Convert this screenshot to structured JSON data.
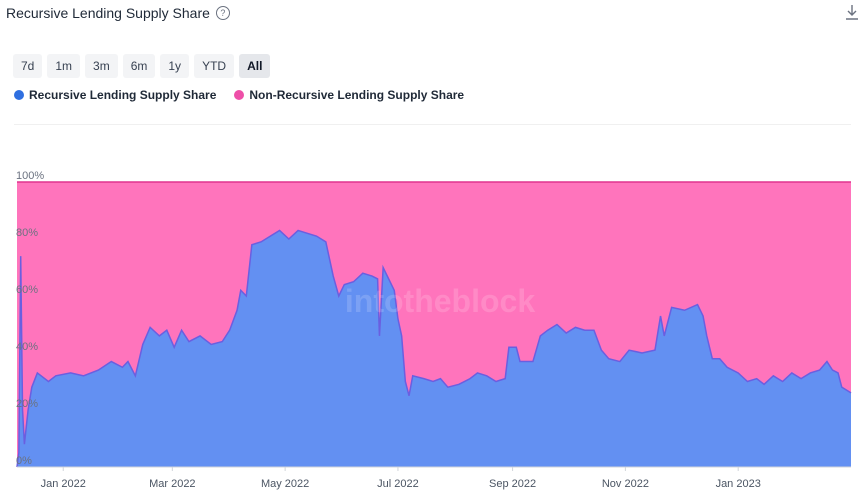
{
  "header": {
    "title": "Recursive Lending Supply Share",
    "help_icon": "question-circle-icon",
    "download_icon": "download-icon"
  },
  "ranges": [
    {
      "label": "7d",
      "active": false
    },
    {
      "label": "1m",
      "active": false
    },
    {
      "label": "3m",
      "active": false
    },
    {
      "label": "6m",
      "active": false
    },
    {
      "label": "1y",
      "active": false
    },
    {
      "label": "YTD",
      "active": false
    },
    {
      "label": "All",
      "active": true
    }
  ],
  "legend": [
    {
      "label": "Recursive Lending Supply Share",
      "color": "#2f6fe0"
    },
    {
      "label": "Non-Recursive Lending Supply Share",
      "color": "#ee4fa8"
    }
  ],
  "watermark": "intotheblock",
  "chart_data": {
    "type": "area",
    "stacked": true,
    "percent": true,
    "x_ticks": [
      "Jan 2022",
      "Mar 2022",
      "May 2022",
      "Jul 2022",
      "Sep 2022",
      "Nov 2022",
      "Jan 2023"
    ],
    "y_ticks": [
      "0%",
      "20%",
      "40%",
      "60%",
      "80%",
      "100%"
    ],
    "ylim": [
      0,
      100
    ],
    "grid": false,
    "x_range": [
      "2021-12-07",
      "2023-03-03"
    ],
    "series": [
      {
        "name": "Recursive Lending Supply Share",
        "color": "#6390f2",
        "line_color": "#6a5fe0",
        "points": [
          [
            "2021-12-07",
            0
          ],
          [
            "2021-12-08",
            5
          ],
          [
            "2021-12-09",
            74
          ],
          [
            "2021-12-10",
            20
          ],
          [
            "2021-12-11",
            8
          ],
          [
            "2021-12-13",
            20
          ],
          [
            "2021-12-15",
            28
          ],
          [
            "2021-12-18",
            33
          ],
          [
            "2021-12-24",
            30
          ],
          [
            "2021-12-28",
            32
          ],
          [
            "2022-01-05",
            33
          ],
          [
            "2022-01-12",
            32
          ],
          [
            "2022-01-20",
            34
          ],
          [
            "2022-01-27",
            37
          ],
          [
            "2022-02-02",
            35
          ],
          [
            "2022-02-05",
            37
          ],
          [
            "2022-02-09",
            32
          ],
          [
            "2022-02-13",
            43
          ],
          [
            "2022-02-17",
            49
          ],
          [
            "2022-02-22",
            46
          ],
          [
            "2022-02-26",
            48
          ],
          [
            "2022-03-02",
            42
          ],
          [
            "2022-03-06",
            48
          ],
          [
            "2022-03-10",
            44
          ],
          [
            "2022-03-16",
            46
          ],
          [
            "2022-03-22",
            43
          ],
          [
            "2022-03-28",
            44
          ],
          [
            "2022-04-01",
            48
          ],
          [
            "2022-04-05",
            55
          ],
          [
            "2022-04-07",
            62
          ],
          [
            "2022-04-10",
            60
          ],
          [
            "2022-04-13",
            78
          ],
          [
            "2022-04-18",
            79
          ],
          [
            "2022-04-23",
            81
          ],
          [
            "2022-04-28",
            83
          ],
          [
            "2022-05-03",
            80
          ],
          [
            "2022-05-08",
            83
          ],
          [
            "2022-05-13",
            82
          ],
          [
            "2022-05-18",
            81
          ],
          [
            "2022-05-23",
            79
          ],
          [
            "2022-05-27",
            67
          ],
          [
            "2022-05-30",
            60
          ],
          [
            "2022-06-02",
            64
          ],
          [
            "2022-06-07",
            65
          ],
          [
            "2022-06-12",
            68
          ],
          [
            "2022-06-17",
            67
          ],
          [
            "2022-06-20",
            66
          ],
          [
            "2022-06-21",
            46
          ],
          [
            "2022-06-23",
            70
          ],
          [
            "2022-06-26",
            66
          ],
          [
            "2022-06-29",
            62
          ],
          [
            "2022-07-01",
            52
          ],
          [
            "2022-07-03",
            46
          ],
          [
            "2022-07-05",
            30
          ],
          [
            "2022-07-07",
            25
          ],
          [
            "2022-07-09",
            32
          ],
          [
            "2022-07-15",
            31
          ],
          [
            "2022-07-20",
            30
          ],
          [
            "2022-07-24",
            31
          ],
          [
            "2022-07-28",
            28
          ],
          [
            "2022-08-03",
            29
          ],
          [
            "2022-08-09",
            31
          ],
          [
            "2022-08-13",
            33
          ],
          [
            "2022-08-18",
            32
          ],
          [
            "2022-08-23",
            30
          ],
          [
            "2022-08-28",
            31
          ],
          [
            "2022-08-30",
            42
          ],
          [
            "2022-09-03",
            42
          ],
          [
            "2022-09-05",
            37
          ],
          [
            "2022-09-12",
            37
          ],
          [
            "2022-09-16",
            46
          ],
          [
            "2022-09-20",
            48
          ],
          [
            "2022-09-25",
            50
          ],
          [
            "2022-09-30",
            47
          ],
          [
            "2022-10-05",
            49
          ],
          [
            "2022-10-10",
            48
          ],
          [
            "2022-10-15",
            48
          ],
          [
            "2022-10-19",
            41
          ],
          [
            "2022-10-23",
            38
          ],
          [
            "2022-10-29",
            37
          ],
          [
            "2022-11-03",
            41
          ],
          [
            "2022-11-10",
            40
          ],
          [
            "2022-11-17",
            41
          ],
          [
            "2022-11-20",
            53
          ],
          [
            "2022-11-22",
            46
          ],
          [
            "2022-11-26",
            56
          ],
          [
            "2022-12-03",
            55
          ],
          [
            "2022-12-10",
            57
          ],
          [
            "2022-12-13",
            53
          ],
          [
            "2022-12-15",
            46
          ],
          [
            "2022-12-18",
            38
          ],
          [
            "2022-12-22",
            38
          ],
          [
            "2022-12-26",
            35
          ],
          [
            "2023-01-01",
            33
          ],
          [
            "2023-01-06",
            30
          ],
          [
            "2023-01-11",
            31
          ],
          [
            "2023-01-15",
            29
          ],
          [
            "2023-01-20",
            32
          ],
          [
            "2023-01-25",
            30
          ],
          [
            "2023-01-30",
            33
          ],
          [
            "2023-02-04",
            31
          ],
          [
            "2023-02-09",
            33
          ],
          [
            "2023-02-14",
            34
          ],
          [
            "2023-02-18",
            37
          ],
          [
            "2023-02-21",
            34
          ],
          [
            "2023-02-24",
            33
          ],
          [
            "2023-02-26",
            28
          ],
          [
            "2023-03-03",
            26
          ]
        ]
      },
      {
        "name": "Non-Recursive Lending Supply Share",
        "color": "#ff74bc",
        "line_color": "#e0338f",
        "note_values": "complement of Recursive Lending Supply Share (sums to 100%)"
      }
    ]
  }
}
